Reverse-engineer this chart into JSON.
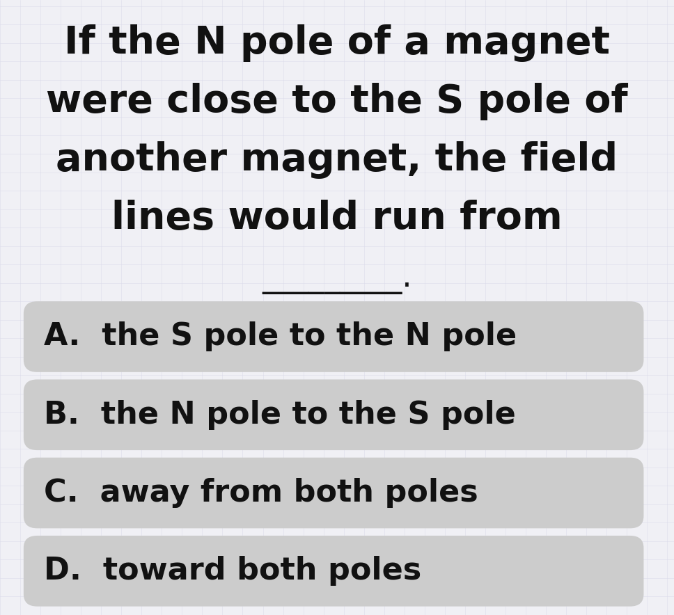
{
  "background_color": "#f0f0f5",
  "question_lines": [
    "If the N pole of a magnet",
    "were close to the S pole of",
    "another magnet, the field",
    "lines would run from"
  ],
  "blank_line": "_________.",
  "options": [
    "A.  the S pole to the N pole",
    "B.  the N pole to the S pole",
    "C.  away from both poles",
    "D.  toward both poles"
  ],
  "question_fontsize": 40,
  "blank_fontsize": 32,
  "option_fontsize": 32,
  "text_color": "#111111",
  "option_bg_color": "#cccccc",
  "fig_width": 9.68,
  "fig_height": 8.84,
  "fig_bg_color": "#f0f0f5",
  "grid_color": "#d8d8e8",
  "grid_alpha": 0.6
}
